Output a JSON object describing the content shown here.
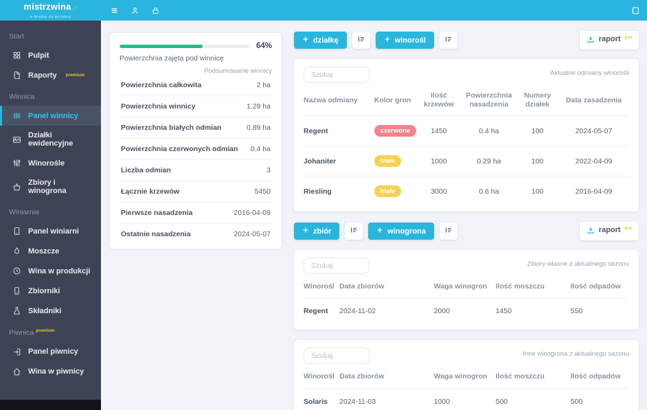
{
  "topbar": {
    "logo_title": "mistrzwina",
    "logo_tagline": "w drodze do perfekcji"
  },
  "sidebar": {
    "premium_badge": "premium",
    "sections": [
      {
        "label": "Start",
        "items": [
          {
            "label": "Pulpit"
          },
          {
            "label": "Raporty",
            "premium": true
          }
        ]
      },
      {
        "label": "Winnica",
        "items": [
          {
            "label": "Panel winnicy",
            "active": true
          },
          {
            "label": "Działki ewidencyjne"
          },
          {
            "label": "Winorośle"
          },
          {
            "label": "Zbiory i winogrona"
          }
        ]
      },
      {
        "label": "Winiarnia",
        "items": [
          {
            "label": "Panel winiarni"
          },
          {
            "label": "Moszcze"
          },
          {
            "label": "Wina w produkcji"
          },
          {
            "label": "Zbiorniki"
          },
          {
            "label": "Składniki"
          }
        ]
      },
      {
        "label": "Piwnica",
        "premium": true,
        "items": [
          {
            "label": "Panel piwnicy"
          },
          {
            "label": "Wina w piwnicy"
          }
        ]
      }
    ]
  },
  "summary": {
    "progress": {
      "value": 64,
      "percent": "64%",
      "label": "Powierzchnia zajęta pod winnicę"
    },
    "subtitle": "Podsumowanie winnicy",
    "rows": [
      {
        "label": "Powierzchnia całkowita",
        "value": "2 ha"
      },
      {
        "label": "Powierzchnia winnicy",
        "value": "1.29 ha"
      },
      {
        "label": "Powierzchnia białych odmian",
        "value": "0.89 ha"
      },
      {
        "label": "Powierzchnia czerwonych odmian",
        "value": "0.4 ha"
      },
      {
        "label": "Liczba odmian",
        "value": "3"
      },
      {
        "label": "Łącznie krzewów",
        "value": "5450"
      },
      {
        "label": "Pierwsze nasadzenia",
        "value": "2016-04-09"
      },
      {
        "label": "Ostatnie nasadzenia",
        "value": "2024-05-07"
      }
    ]
  },
  "toolbar1": {
    "add_plot_label": "działkę",
    "add_vine_label": "winorośl",
    "report_label": "raport",
    "pro_badge": "pro"
  },
  "toolbar2": {
    "add_harvest_label": "zbiór",
    "add_grapes_label": "winogrona",
    "report_label": "raport",
    "pro_badge": "pro"
  },
  "varieties_table": {
    "search_placeholder": "Szukaj",
    "caption": "Aktualne odmiany winorośli",
    "columns": [
      "Nazwa odmiany",
      "Kolor gron",
      "Ilość krzewów",
      "Powierzchnia nasadzenia",
      "Numery działek",
      "Data zasadzenia"
    ],
    "rows": [
      {
        "name": "Regent",
        "color": "czerwone",
        "bushes": "1450",
        "area": "0.4 ha",
        "plots": "100",
        "date": "2024-05-07"
      },
      {
        "name": "Johaniter",
        "color": "białe",
        "bushes": "1000",
        "area": "0.29 ha",
        "plots": "100",
        "date": "2022-04-09"
      },
      {
        "name": "Riesling",
        "color": "białe",
        "bushes": "3000",
        "area": "0.6 ha",
        "plots": "100",
        "date": "2016-04-09"
      }
    ]
  },
  "harvest_table": {
    "search_placeholder": "Szukaj",
    "caption": "Zbiory własne z aktualnego sezonu",
    "columns": [
      "Winorośl",
      "Data zbiorów",
      "Waga winogron",
      "Ilość moszczu",
      "Ilość odpadów"
    ],
    "rows": [
      {
        "vine": "Regent",
        "date": "2024-11-02",
        "weight": "2000",
        "must": "1450",
        "waste": "550"
      }
    ]
  },
  "other_grapes_table": {
    "search_placeholder": "Szukaj",
    "caption": "Inne winogrona z aktualnego sezonu",
    "columns": [
      "Winorośl",
      "Data zbiorów",
      "Waga winogron",
      "Ilość moszczu",
      "Ilość odpadów"
    ],
    "rows": [
      {
        "vine": "Solaris",
        "date": "2024-11-03",
        "weight": "1000",
        "must": "500",
        "waste": "500"
      }
    ]
  },
  "colors": {
    "accent_cyan": "#29b6dd",
    "topbar_cyan": "#2ab5e0",
    "sidebar_dark": "#3d4354",
    "premium_yellow": "#f0c419",
    "progress_green": "#2eb793",
    "pill_red": "#f2838c",
    "pill_yellow": "#f6d24e",
    "logo_arrow_green": "#3ddc97"
  }
}
